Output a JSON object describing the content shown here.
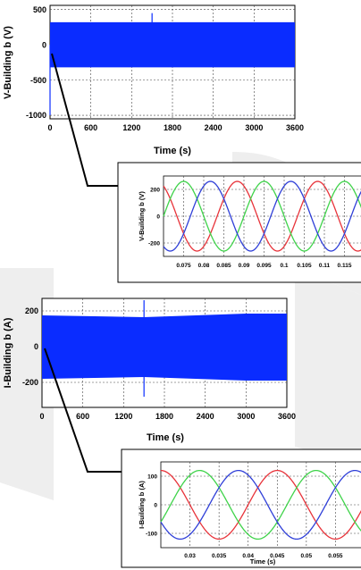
{
  "colors": {
    "voltage_signal": "#0a2cff",
    "phase_a": "#e8333a",
    "phase_b": "#3fd34a",
    "phase_c": "#2f3fd8",
    "watermark": "#eeeeee"
  },
  "chart_data": [
    {
      "type": "line",
      "xlabel": "Time (s)",
      "ylabel": "V-Building b (V)",
      "xlim": [
        0,
        3600
      ],
      "ylim": [
        -1050,
        560
      ],
      "x_ticks": [
        0,
        600,
        1200,
        1800,
        2400,
        3000,
        3600
      ],
      "y_ticks": [
        -1000,
        -500,
        0,
        500
      ],
      "grid": true,
      "series": [
        {
          "kind": "envelope",
          "x": [
            0,
            3600
          ],
          "upper": [
            320,
            320
          ],
          "lower": [
            -320,
            -320
          ]
        },
        {
          "kind": "spike",
          "x": [
            1500
          ],
          "values": [
            450
          ]
        },
        {
          "kind": "spike",
          "x": [
            0
          ],
          "values": [
            -1000
          ]
        }
      ]
    },
    {
      "type": "line",
      "xlabel": "",
      "ylabel": "V-Building b (V)",
      "xlim": [
        0.07,
        0.12
      ],
      "ylim": [
        -300,
        300
      ],
      "x_ticks": [
        "0.075",
        "0.08",
        "0.085",
        "0.09",
        "0.095",
        "0.1",
        "0.105",
        "0.11",
        "0.115"
      ],
      "y_ticks": [
        "200",
        "0",
        "-200"
      ],
      "grid": true,
      "series": [
        {
          "phase": "a",
          "amplitude": 260,
          "frequency_hz": 50,
          "phase_deg": -60
        },
        {
          "phase": "b",
          "amplitude": 260,
          "frequency_hz": 50,
          "phase_deg": 180
        },
        {
          "phase": "c",
          "amplitude": 260,
          "frequency_hz": 50,
          "phase_deg": 60
        }
      ]
    },
    {
      "type": "line",
      "xlabel": "Time (s)",
      "ylabel": "I-Building b (A)",
      "xlim": [
        0,
        3600
      ],
      "ylim": [
        -340,
        270
      ],
      "x_ticks": [
        0,
        600,
        1200,
        1800,
        2400,
        3000,
        3600
      ],
      "y_ticks": [
        -200,
        0,
        200
      ],
      "grid": true,
      "series": [
        {
          "kind": "envelope",
          "x": [
            0,
            1500,
            3000,
            3600
          ],
          "upper": [
            175,
            165,
            185,
            185
          ],
          "lower": [
            -180,
            -170,
            -190,
            -190
          ]
        },
        {
          "kind": "spike",
          "x": [
            1500
          ],
          "values": [
            260
          ]
        },
        {
          "kind": "spike",
          "x": [
            1500
          ],
          "values": [
            -280
          ]
        }
      ]
    },
    {
      "type": "line",
      "xlabel": "Time (s)",
      "ylabel": "I-Building b (A)",
      "xlim": [
        0.025,
        0.06
      ],
      "ylim": [
        -150,
        150
      ],
      "x_ticks": [
        "0.03",
        "0.035",
        "0.04",
        "0.045",
        "0.05",
        "0.055"
      ],
      "y_ticks": [
        "100",
        "0",
        "-100"
      ],
      "grid": true,
      "series": [
        {
          "phase": "a",
          "amplitude": 120,
          "frequency_hz": 50,
          "phase_deg": 0
        },
        {
          "phase": "b",
          "amplitude": 120,
          "frequency_hz": 50,
          "phase_deg": -120
        },
        {
          "phase": "c",
          "amplitude": 120,
          "frequency_hz": 50,
          "phase_deg": 120
        }
      ]
    }
  ]
}
